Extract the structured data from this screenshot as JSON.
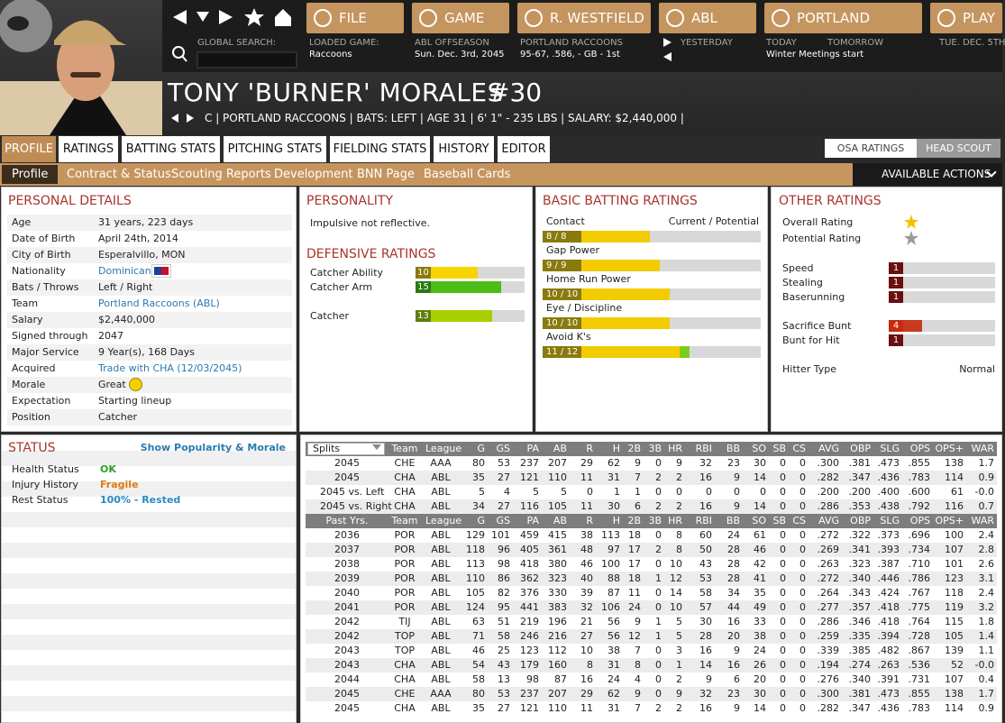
{
  "header": {
    "nav_buttons": [
      "FILE",
      "GAME",
      "R. WESTFIELD",
      "ABL",
      "PORTLAND",
      "PLAY"
    ],
    "info": [
      {
        "label": "GLOBAL SEARCH:"
      },
      {
        "label": "LOADED GAME:",
        "value": "Raccoons"
      },
      {
        "label": "ABL OFFSEASON",
        "value": "Sun. Dec. 3rd, 2045"
      },
      {
        "label": "PORTLAND RACCOONS",
        "value": "95-67, .586, - GB - 1st"
      },
      {
        "label": "YESTERDAY"
      },
      {
        "label": "TODAY",
        "value": "Winter Meetings start"
      },
      {
        "label": "TOMORROW"
      },
      {
        "label": "TUE. DEC. 5TH"
      }
    ]
  },
  "player": {
    "name": "TONY 'BURNER' MORALES",
    "number": "#30",
    "details": "C | PORTLAND RACCOONS | BATS: LEFT | AGE 31 | 6' 1\" - 235 LBS | SALARY: $2,440,000 |"
  },
  "tabs": [
    "PROFILE",
    "RATINGS",
    "BATTING STATS",
    "PITCHING STATS",
    "FIELDING STATS",
    "HISTORY",
    "EDITOR"
  ],
  "toggles": [
    "OSA RATINGS",
    "HEAD SCOUT"
  ],
  "subtabs": [
    "Profile",
    "Contract & Status",
    "Scouting Reports",
    "Development",
    "BNN Page",
    "Baseball Cards"
  ],
  "actions": "AVAILABLE ACTIONS",
  "personal_details": {
    "title": "PERSONAL DETAILS",
    "rows": [
      {
        "label": "Age",
        "value": "31 years, 223 days"
      },
      {
        "label": "Date of Birth",
        "value": "April 24th, 2014"
      },
      {
        "label": "City of Birth",
        "value": "Esperalvillo, MON"
      },
      {
        "label": "Nationality",
        "value": "Dominican",
        "link": true
      },
      {
        "label": "Bats / Throws",
        "value": "Left / Right"
      },
      {
        "label": "Team",
        "value": "Portland Raccoons (ABL)",
        "link": true
      },
      {
        "label": "Salary",
        "value": "$2,440,000"
      },
      {
        "label": "Signed through",
        "value": "2047"
      },
      {
        "label": "Major Service",
        "value": "9 Year(s), 168 Days"
      },
      {
        "label": "Acquired",
        "value": "Trade with CHA (12/03/2045)",
        "link": true
      },
      {
        "label": "Morale",
        "value": "Great"
      },
      {
        "label": "Expectation",
        "value": "Starting lineup"
      },
      {
        "label": "Position",
        "value": "Catcher"
      }
    ]
  },
  "personality": {
    "title": "PERSONALITY",
    "text": "Impulsive not reflective."
  },
  "defensive_ratings": {
    "title": "DEFENSIVE RATINGS",
    "rows": [
      {
        "label": "Catcher Ability",
        "value": 10,
        "color": "#8a7a0c",
        "bar_color": "#f5d400"
      },
      {
        "label": "Catcher Arm",
        "value": 15,
        "color": "#2a7a12",
        "bar_color": "#4cbc16"
      },
      {
        "label": "Catcher",
        "value": 13,
        "color": "#5e7e0e",
        "bar_color": "#a8d000"
      }
    ]
  },
  "batting_ratings": {
    "title": "BASIC BATTING RATINGS",
    "header": "Current / Potential",
    "rows": [
      {
        "label": "Contact",
        "current": 8,
        "potential": 8,
        "text": "8 / 8"
      },
      {
        "label": "Gap Power",
        "current": 9,
        "potential": 9,
        "text": "9 / 9"
      },
      {
        "label": "Home Run Power",
        "current": 10,
        "potential": 10,
        "text": "10 / 10"
      },
      {
        "label": "Eye / Discipline",
        "current": 10,
        "potential": 10,
        "text": "10 / 10"
      },
      {
        "label": "Avoid K's",
        "current": 11,
        "potential": 12,
        "text": "11 / 12"
      }
    ]
  },
  "other_ratings": {
    "title": "OTHER RATINGS",
    "stars": [
      {
        "label": "Overall Rating",
        "color": "#f2c200"
      },
      {
        "label": "Potential Rating",
        "color": "#9a9a9a"
      }
    ],
    "rows": [
      {
        "label": "Speed",
        "value": 1,
        "color": "#6a0e0e"
      },
      {
        "label": "Stealing",
        "value": 1,
        "color": "#6a0e0e"
      },
      {
        "label": "Baserunning",
        "value": 1,
        "color": "#6a0e0e"
      },
      {
        "label": "Sacrifice Bunt",
        "value": 4,
        "color": "#c8290c"
      },
      {
        "label": "Bunt for Hit",
        "value": 1,
        "color": "#6a0e0e"
      }
    ],
    "hitter_type": {
      "label": "Hitter Type",
      "value": "Normal"
    }
  },
  "status": {
    "title": "STATUS",
    "link": "Show Popularity & Morale",
    "rows": [
      {
        "label": "Health Status",
        "value": "OK",
        "color": "#2e9e2e"
      },
      {
        "label": "Injury History",
        "value": "Fragile",
        "color": "#e07a10"
      },
      {
        "label": "Rest Status",
        "value": "100% - Rested",
        "color": "#2a8ac0"
      }
    ]
  },
  "stats": {
    "header": [
      "Splits",
      "Team",
      "League",
      "G",
      "GS",
      "PA",
      "AB",
      "R",
      "H",
      "2B",
      "3B",
      "HR",
      "RBI",
      "BB",
      "SO",
      "SB",
      "CS",
      "AVG",
      "OBP",
      "SLG",
      "OPS",
      "OPS+",
      "WAR"
    ],
    "split_rows": [
      [
        "2045",
        "CHE",
        "AAA",
        "80",
        "53",
        "237",
        "207",
        "29",
        "62",
        "9",
        "0",
        "9",
        "32",
        "23",
        "30",
        "0",
        "0",
        ".300",
        ".381",
        ".473",
        ".855",
        "138",
        "1.7"
      ],
      [
        "2045",
        "CHA",
        "ABL",
        "35",
        "27",
        "121",
        "110",
        "11",
        "31",
        "7",
        "2",
        "2",
        "16",
        "9",
        "14",
        "0",
        "0",
        ".282",
        ".347",
        ".436",
        ".783",
        "114",
        "0.9"
      ],
      [
        "2045 vs. Left",
        "CHA",
        "ABL",
        "5",
        "4",
        "5",
        "5",
        "0",
        "1",
        "1",
        "0",
        "0",
        "0",
        "0",
        "0",
        "0",
        "0",
        ".200",
        ".200",
        ".400",
        ".600",
        "61",
        "-0.0"
      ],
      [
        "2045 vs. Right",
        "CHA",
        "ABL",
        "34",
        "27",
        "116",
        "105",
        "11",
        "30",
        "6",
        "2",
        "2",
        "16",
        "9",
        "14",
        "0",
        "0",
        ".286",
        ".353",
        ".438",
        ".792",
        "116",
        "0.7"
      ]
    ],
    "past_header": [
      "Past Yrs.",
      "Team",
      "League",
      "G",
      "GS",
      "PA",
      "AB",
      "R",
      "H",
      "2B",
      "3B",
      "HR",
      "RBI",
      "BB",
      "SO",
      "SB",
      "CS",
      "AVG",
      "OBP",
      "SLG",
      "OPS",
      "OPS+",
      "WAR"
    ],
    "past_rows": [
      [
        "2036",
        "POR",
        "ABL",
        "129",
        "101",
        "459",
        "415",
        "38",
        "113",
        "18",
        "0",
        "8",
        "60",
        "24",
        "61",
        "0",
        "0",
        ".272",
        ".322",
        ".373",
        ".696",
        "100",
        "2.4"
      ],
      [
        "2037",
        "POR",
        "ABL",
        "118",
        "96",
        "405",
        "361",
        "48",
        "97",
        "17",
        "2",
        "8",
        "50",
        "28",
        "46",
        "0",
        "0",
        ".269",
        ".341",
        ".393",
        ".734",
        "107",
        "2.8"
      ],
      [
        "2038",
        "POR",
        "ABL",
        "113",
        "98",
        "418",
        "380",
        "46",
        "100",
        "17",
        "0",
        "10",
        "43",
        "28",
        "42",
        "0",
        "0",
        ".263",
        ".323",
        ".387",
        ".710",
        "101",
        "2.6"
      ],
      [
        "2039",
        "POR",
        "ABL",
        "110",
        "86",
        "362",
        "323",
        "40",
        "88",
        "18",
        "1",
        "12",
        "53",
        "28",
        "41",
        "0",
        "0",
        ".272",
        ".340",
        ".446",
        ".786",
        "123",
        "3.1"
      ],
      [
        "2040",
        "POR",
        "ABL",
        "105",
        "82",
        "376",
        "330",
        "39",
        "87",
        "11",
        "0",
        "14",
        "58",
        "34",
        "35",
        "0",
        "0",
        ".264",
        ".343",
        ".424",
        ".767",
        "118",
        "2.4"
      ],
      [
        "2041",
        "POR",
        "ABL",
        "124",
        "95",
        "441",
        "383",
        "32",
        "106",
        "24",
        "0",
        "10",
        "57",
        "44",
        "49",
        "0",
        "0",
        ".277",
        ".357",
        ".418",
        ".775",
        "119",
        "3.2"
      ],
      [
        "2042",
        "TIJ",
        "ABL",
        "63",
        "51",
        "219",
        "196",
        "21",
        "56",
        "9",
        "1",
        "5",
        "30",
        "16",
        "33",
        "0",
        "0",
        ".286",
        ".346",
        ".418",
        ".764",
        "115",
        "1.8"
      ],
      [
        "2042",
        "TOP",
        "ABL",
        "71",
        "58",
        "246",
        "216",
        "27",
        "56",
        "12",
        "1",
        "5",
        "28",
        "20",
        "38",
        "0",
        "0",
        ".259",
        ".335",
        ".394",
        ".728",
        "105",
        "1.4"
      ],
      [
        "2043",
        "TOP",
        "ABL",
        "46",
        "25",
        "123",
        "112",
        "10",
        "38",
        "7",
        "0",
        "3",
        "16",
        "9",
        "24",
        "0",
        "0",
        ".339",
        ".385",
        ".482",
        ".867",
        "139",
        "1.1"
      ],
      [
        "2043",
        "CHA",
        "ABL",
        "54",
        "43",
        "179",
        "160",
        "8",
        "31",
        "8",
        "0",
        "1",
        "14",
        "16",
        "26",
        "0",
        "0",
        ".194",
        ".274",
        ".263",
        ".536",
        "52",
        "-0.0"
      ],
      [
        "2044",
        "CHA",
        "ABL",
        "58",
        "13",
        "98",
        "87",
        "16",
        "24",
        "4",
        "0",
        "2",
        "9",
        "6",
        "20",
        "0",
        "0",
        ".276",
        ".340",
        ".391",
        ".731",
        "107",
        "0.4"
      ],
      [
        "2045",
        "CHE",
        "AAA",
        "80",
        "53",
        "237",
        "207",
        "29",
        "62",
        "9",
        "0",
        "9",
        "32",
        "23",
        "30",
        "0",
        "0",
        ".300",
        ".381",
        ".473",
        ".855",
        "138",
        "1.7"
      ],
      [
        "2045",
        "CHA",
        "ABL",
        "35",
        "27",
        "121",
        "110",
        "11",
        "31",
        "7",
        "2",
        "2",
        "16",
        "9",
        "14",
        "0",
        "0",
        ".282",
        ".347",
        ".436",
        ".783",
        "114",
        "0.9"
      ]
    ]
  }
}
